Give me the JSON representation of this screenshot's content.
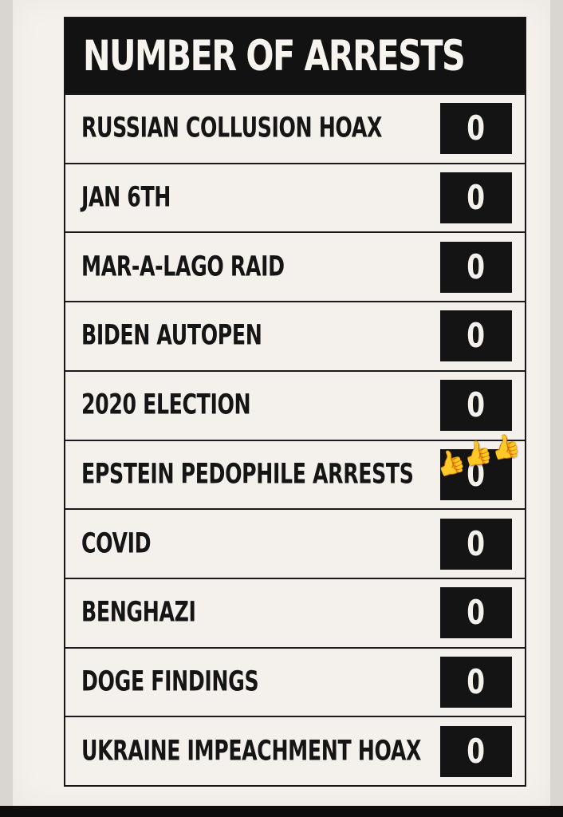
{
  "title": "NUMBER OF ARRESTS",
  "rows": [
    {
      "label": "RUSSIAN COLLUSION HOAX",
      "count": "0"
    },
    {
      "label": "JAN 6TH",
      "count": "0"
    },
    {
      "label": "MAR-A-LAGO RAID",
      "count": "0"
    },
    {
      "label": "BIDEN AUTOPEN",
      "count": "0"
    },
    {
      "label": "2020 ELECTION",
      "count": "0"
    },
    {
      "label": "EPSTEIN PEDOPHILE ARRESTS",
      "count": "0",
      "overlay_emoji": [
        "👍",
        "👍",
        "👍"
      ]
    },
    {
      "label": "COVID",
      "count": "0"
    },
    {
      "label": "BENGHAZI",
      "count": "0"
    },
    {
      "label": "DOGE FINDINGS",
      "count": "0"
    },
    {
      "label": "UKRAINE IMPEACHMENT HOAX",
      "count": "0"
    }
  ],
  "colors": {
    "header_bg": "#121212",
    "header_text": "#f7f4ef",
    "paper": "#f4f1ed",
    "counter_bg": "#141414"
  }
}
